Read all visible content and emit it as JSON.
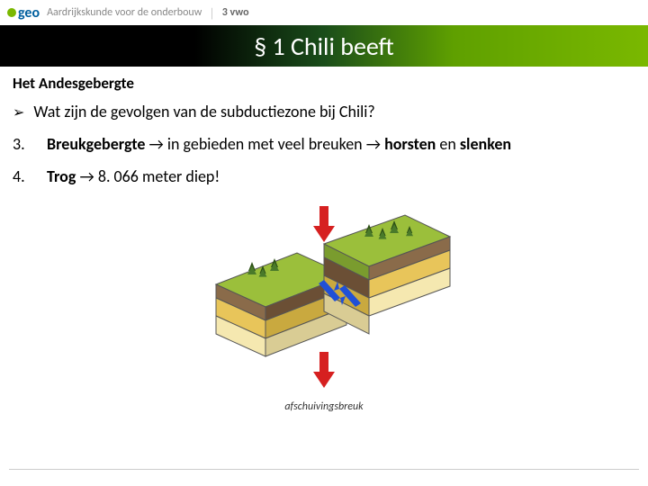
{
  "header": {
    "logo_text": "geo",
    "subtitle": "Aardrijkskunde voor de onderbouw",
    "level": "3 vwo"
  },
  "title": "§ 1 Chili beeft",
  "section_heading": "Het Andesgebergte",
  "question": "Wat zijn de gevolgen van de subductiezone bij Chili?",
  "items": [
    {
      "num": "3.",
      "parts": [
        {
          "text": "Breukgebergte",
          "bold": true
        },
        {
          "text": " → in gebieden met veel breuken → ",
          "bold": false
        },
        {
          "text": "horsten",
          "bold": true
        },
        {
          "text": " en ",
          "bold": false
        },
        {
          "text": "slenken",
          "bold": true
        }
      ]
    },
    {
      "num": "4.",
      "parts": [
        {
          "text": "Trog",
          "bold": true
        },
        {
          "text": " → 8. 066 meter diep!",
          "bold": false
        }
      ]
    }
  ],
  "diagram": {
    "caption": "afschuivingsbreuk",
    "colors": {
      "grass": "#9bbf3b",
      "grass_side": "#7a9c2e",
      "soil": "#8a6b4a",
      "soil_side": "#6b4f35",
      "sand": "#e8c55a",
      "sand_side": "#c9a93f",
      "rock": "#f5e8b0",
      "rock_side": "#d9cc94",
      "arrow_red": "#d62020",
      "arrow_blue": "#2050d6",
      "tree_dark": "#2d5016",
      "tree_light": "#4a7a2a",
      "outline": "#555555"
    }
  },
  "style": {
    "title_color": "#ffffff",
    "band_gradient_start": "#000000",
    "band_gradient_end": "#7ab800",
    "text_color": "#000000"
  }
}
